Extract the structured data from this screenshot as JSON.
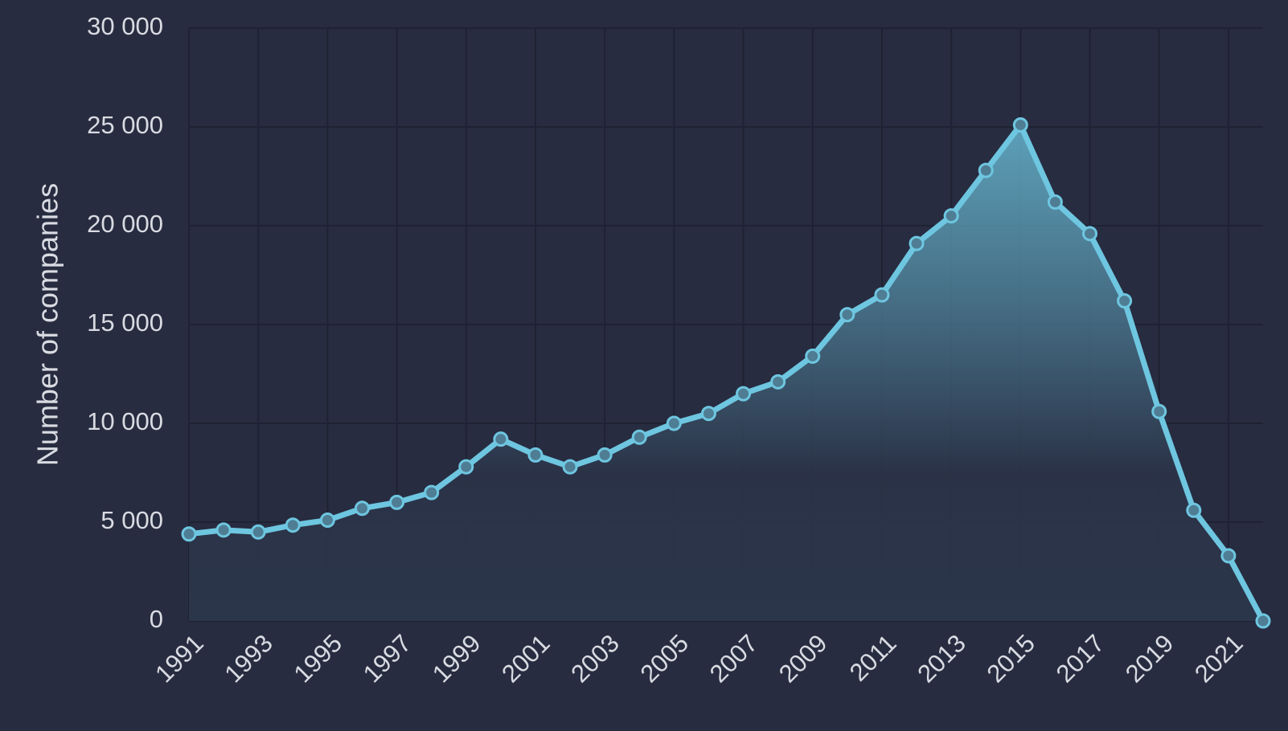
{
  "chart_data": {
    "type": "area",
    "y_label": "Number of companies",
    "x": [
      1991,
      1992,
      1993,
      1994,
      1995,
      1996,
      1997,
      1998,
      1999,
      2000,
      2001,
      2002,
      2003,
      2004,
      2005,
      2006,
      2007,
      2008,
      2009,
      2010,
      2011,
      2012,
      2013,
      2014,
      2015,
      2016,
      2017,
      2018,
      2019,
      2020,
      2021,
      2022
    ],
    "series": [
      {
        "color": "#6ec6e0",
        "values": [
          4400,
          4600,
          4500,
          4850,
          5100,
          5700,
          6000,
          6500,
          7800,
          9200,
          8400,
          7800,
          8400,
          9300,
          10000,
          10500,
          11500,
          12100,
          13400,
          15500,
          16500,
          19100,
          20500,
          22800,
          25100,
          21200,
          19600,
          16200,
          10600,
          5600,
          3300,
          0
        ]
      }
    ],
    "xlim": [
      1991,
      2022
    ],
    "xticks": [
      1991,
      1993,
      1995,
      1997,
      1999,
      2001,
      2003,
      2005,
      2007,
      2009,
      2011,
      2013,
      2015,
      2017,
      2019,
      2021
    ],
    "ylim": [
      0,
      30000
    ],
    "yticks": [
      0,
      {
        "value": 5000,
        "label": "5 000"
      },
      {
        "value": 10000,
        "label": "10 000"
      },
      {
        "value": 15000,
        "label": "15 000"
      },
      {
        "value": 20000,
        "label": "20 000"
      },
      {
        "value": 25000,
        "label": "25 000"
      },
      {
        "value": 30000,
        "label": "30 000"
      }
    ],
    "grid": true
  }
}
